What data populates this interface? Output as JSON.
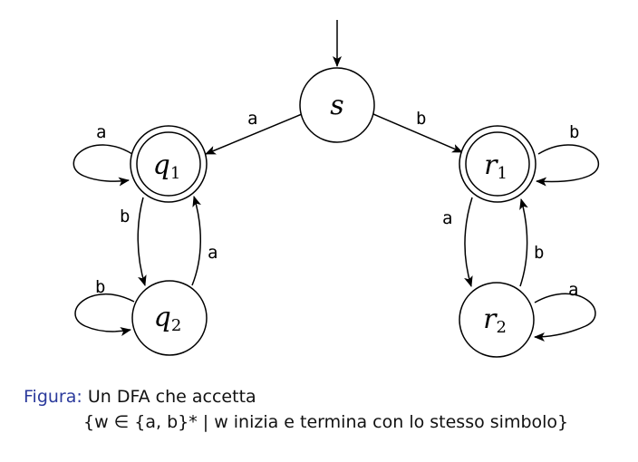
{
  "states": {
    "s": {
      "name": "s",
      "sub": ""
    },
    "q1": {
      "name": "q",
      "sub": "1"
    },
    "q2": {
      "name": "q",
      "sub": "2"
    },
    "r1": {
      "name": "r",
      "sub": "1"
    },
    "r2": {
      "name": "r",
      "sub": "2"
    }
  },
  "edges": {
    "s_q1": "a",
    "s_r1": "b",
    "q1_loop": "a",
    "q1_q2": "b",
    "q2_q1": "a",
    "q2_loop": "b",
    "r1_loop": "b",
    "r1_r2": "a",
    "r2_r1": "b",
    "r2_loop": "a"
  },
  "caption": {
    "prefix": "Figura:",
    "text": "Un DFA che accetta",
    "formula": "{w ∈ {a, b}* | w inizia e termina con lo stesso simbolo}"
  }
}
